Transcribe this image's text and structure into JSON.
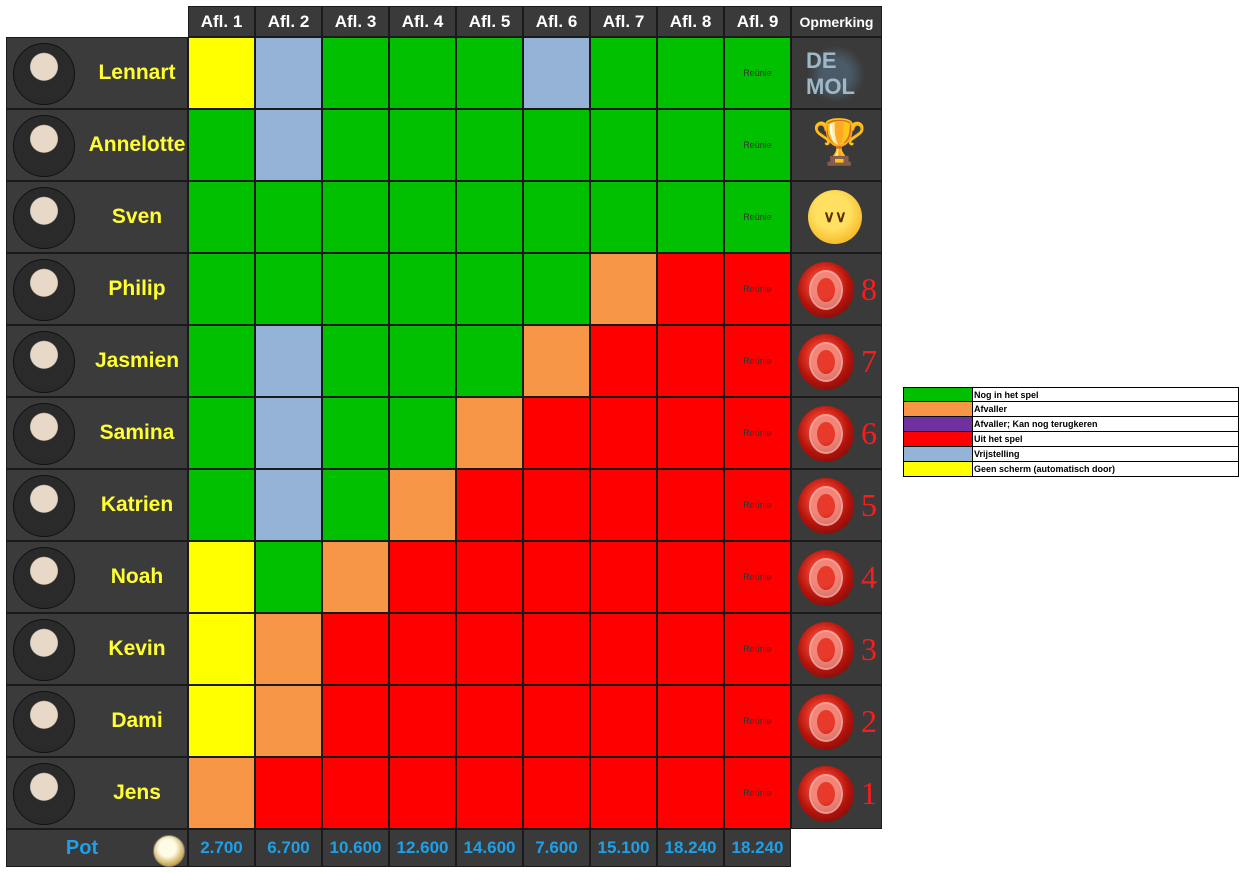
{
  "colors": {
    "green": "#00c000",
    "orange": "#f79646",
    "purple": "#7030a0",
    "red": "#ff0000",
    "blue": "#95b3d7",
    "yellow": "#ffff00"
  },
  "headers": [
    "Afl. 1",
    "Afl. 2",
    "Afl. 3",
    "Afl. 4",
    "Afl. 5",
    "Afl. 6",
    "Afl. 7",
    "Afl. 8",
    "Afl. 9",
    "Opmerking"
  ],
  "reunie_label": "Reünie",
  "contestants": [
    {
      "name": "Lennart",
      "cells": [
        "yellow",
        "blue",
        "green",
        "green",
        "green",
        "blue",
        "green",
        "green",
        "green"
      ],
      "remark": "logo",
      "logo_text": "DE MOL"
    },
    {
      "name": "Annelotte",
      "cells": [
        "green",
        "blue",
        "green",
        "green",
        "green",
        "green",
        "green",
        "green",
        "green"
      ],
      "remark": "trophy-icon"
    },
    {
      "name": "Sven",
      "cells": [
        "green",
        "green",
        "green",
        "green",
        "green",
        "green",
        "green",
        "green",
        "green"
      ],
      "remark": "angry-face-icon"
    },
    {
      "name": "Philip",
      "cells": [
        "green",
        "green",
        "green",
        "green",
        "green",
        "green",
        "orange",
        "red",
        "red"
      ],
      "remark": "fingerprint-icon",
      "rank": "8"
    },
    {
      "name": "Jasmien",
      "cells": [
        "green",
        "blue",
        "green",
        "green",
        "green",
        "orange",
        "red",
        "red",
        "red"
      ],
      "remark": "fingerprint-icon",
      "rank": "7"
    },
    {
      "name": "Samina",
      "cells": [
        "green",
        "blue",
        "green",
        "green",
        "orange",
        "red",
        "red",
        "red",
        "red"
      ],
      "remark": "fingerprint-icon",
      "rank": "6"
    },
    {
      "name": "Katrien",
      "cells": [
        "green",
        "blue",
        "green",
        "orange",
        "red",
        "red",
        "red",
        "red",
        "red"
      ],
      "remark": "fingerprint-icon",
      "rank": "5"
    },
    {
      "name": "Noah",
      "cells": [
        "yellow",
        "green",
        "orange",
        "red",
        "red",
        "red",
        "red",
        "red",
        "red"
      ],
      "remark": "fingerprint-icon",
      "rank": "4"
    },
    {
      "name": "Kevin",
      "cells": [
        "yellow",
        "orange",
        "red",
        "red",
        "red",
        "red",
        "red",
        "red",
        "red"
      ],
      "remark": "fingerprint-icon",
      "rank": "3"
    },
    {
      "name": "Dami",
      "cells": [
        "yellow",
        "orange",
        "red",
        "red",
        "red",
        "red",
        "red",
        "red",
        "red"
      ],
      "remark": "fingerprint-icon",
      "rank": "2"
    },
    {
      "name": "Jens",
      "cells": [
        "orange",
        "red",
        "red",
        "red",
        "red",
        "red",
        "red",
        "red",
        "red"
      ],
      "remark": "fingerprint-icon",
      "rank": "1"
    }
  ],
  "pot": {
    "label": "Pot",
    "values": [
      "2.700",
      "6.700",
      "10.600",
      "12.600",
      "14.600",
      "7.600",
      "15.100",
      "18.240",
      "18.240"
    ]
  },
  "legend": [
    {
      "color": "green",
      "label": "Nog in het spel"
    },
    {
      "color": "orange",
      "label": "Afvaller"
    },
    {
      "color": "purple",
      "label": "Afvaller; Kan nog terugkeren"
    },
    {
      "color": "red",
      "label": "Uit het spel"
    },
    {
      "color": "blue",
      "label": "Vrijstelling"
    },
    {
      "color": "yellow",
      "label": "Geen scherm (automatisch door)"
    }
  ]
}
